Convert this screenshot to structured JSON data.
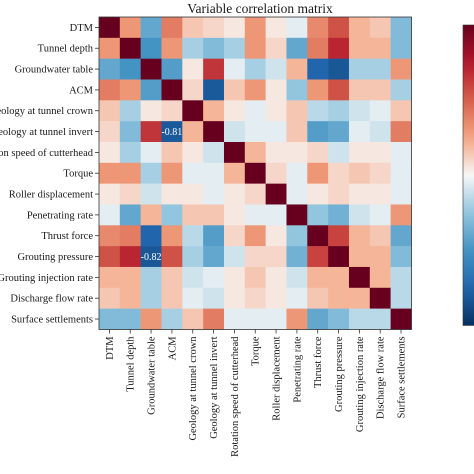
{
  "chart_data": {
    "type": "heatmap",
    "title": "Variable correlation matrix",
    "row_labels": [
      "DTM",
      "Tunnel depth",
      "Groundwater table",
      "ACM",
      "Geology at tunnel crown",
      "Geology at tunnel invert",
      "Rotation speed of cutterhead",
      "Torque",
      "Roller displacement",
      "Penetrating rate",
      "Thrust force",
      "Grouting pressure",
      "Grouting injection rate",
      "Discharge flow rate",
      "Surface settlements"
    ],
    "col_labels": [
      "DTM",
      "Tunnel depth",
      "Groundwater table",
      "ACM",
      "Geology at tunnel crown",
      "Geology at tunnel invert",
      "Rotation speed of cutterhead",
      "Torque",
      "Roller displacement",
      "Penetrating rate",
      "Thrust force",
      "Grouting pressure",
      "Grouting injection rate",
      "Discharge flow rate",
      "Surface settlements"
    ],
    "values": [
      [
        1.0,
        0.3,
        -0.4,
        0.4,
        0.15,
        0.1,
        0.05,
        0.3,
        0.05,
        -0.05,
        0.35,
        0.55,
        0.2,
        0.15,
        -0.3
      ],
      [
        0.3,
        1.0,
        -0.5,
        0.3,
        -0.2,
        -0.3,
        -0.2,
        0.3,
        0.1,
        -0.4,
        0.4,
        0.7,
        0.2,
        0.2,
        -0.3
      ],
      [
        -0.4,
        -0.5,
        1.0,
        -0.45,
        0.05,
        0.65,
        -0.05,
        -0.2,
        -0.1,
        0.2,
        -0.75,
        -0.82,
        -0.2,
        -0.2,
        0.3
      ],
      [
        0.4,
        0.3,
        -0.45,
        1.0,
        0.1,
        -0.81,
        0.15,
        0.3,
        0.05,
        -0.25,
        0.3,
        0.55,
        0.15,
        0.15,
        -0.2
      ],
      [
        0.15,
        -0.2,
        0.05,
        0.1,
        1.0,
        0.2,
        0.05,
        -0.05,
        0.05,
        0.15,
        -0.15,
        -0.2,
        -0.1,
        -0.05,
        0.15
      ],
      [
        0.1,
        -0.3,
        0.65,
        -0.81,
        0.2,
        1.0,
        -0.1,
        -0.05,
        -0.05,
        0.15,
        -0.45,
        -0.4,
        -0.05,
        -0.1,
        0.4
      ],
      [
        0.05,
        -0.2,
        -0.05,
        0.15,
        0.05,
        -0.1,
        1.0,
        0.2,
        0.05,
        0.05,
        0.1,
        -0.1,
        0.05,
        0.05,
        -0.05
      ],
      [
        0.3,
        0.3,
        -0.2,
        0.3,
        -0.05,
        -0.05,
        0.2,
        1.0,
        0.1,
        -0.05,
        0.3,
        0.1,
        0.15,
        0.1,
        -0.05
      ],
      [
        0.05,
        0.1,
        -0.1,
        0.05,
        0.05,
        -0.05,
        0.05,
        0.1,
        1.0,
        -0.05,
        0.05,
        0.1,
        0.05,
        0.05,
        -0.05
      ],
      [
        -0.05,
        -0.4,
        0.2,
        -0.25,
        0.15,
        0.15,
        0.05,
        -0.05,
        -0.05,
        1.0,
        -0.25,
        -0.35,
        -0.1,
        -0.05,
        0.3
      ],
      [
        0.35,
        0.4,
        -0.75,
        0.3,
        -0.15,
        -0.45,
        0.1,
        0.3,
        0.05,
        -0.25,
        1.0,
        0.6,
        0.2,
        0.15,
        -0.4
      ],
      [
        0.55,
        0.7,
        -0.82,
        0.55,
        -0.2,
        -0.4,
        -0.1,
        0.1,
        0.1,
        -0.35,
        0.6,
        1.0,
        0.2,
        0.2,
        -0.3
      ],
      [
        0.2,
        0.2,
        -0.2,
        0.15,
        -0.1,
        -0.05,
        0.05,
        0.15,
        0.05,
        -0.1,
        0.2,
        0.2,
        1.0,
        0.2,
        -0.15
      ],
      [
        0.15,
        0.2,
        -0.2,
        0.15,
        -0.05,
        -0.1,
        0.05,
        0.1,
        0.05,
        -0.05,
        0.15,
        0.2,
        0.2,
        1.0,
        -0.15
      ],
      [
        -0.3,
        -0.3,
        0.3,
        -0.2,
        0.15,
        0.4,
        -0.05,
        -0.05,
        -0.05,
        0.3,
        -0.4,
        -0.3,
        -0.15,
        -0.15,
        1.0
      ]
    ],
    "annotations": [
      {
        "row": 5,
        "col": 3,
        "text": "-0.81"
      },
      {
        "row": 11,
        "col": 2,
        "text": "-0.82"
      }
    ],
    "color_range": [
      -1,
      1
    ],
    "colormap": "RdBu_r",
    "colors": {
      "neg": "#053061",
      "zero": "#f7f7f7",
      "pos": "#67001f"
    },
    "colorbar": "right"
  }
}
